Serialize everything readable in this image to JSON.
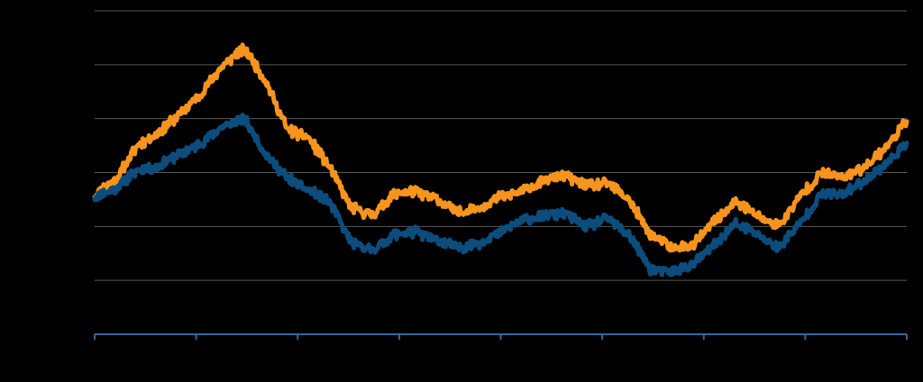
{
  "chart_data": {
    "type": "line",
    "title": "",
    "xlabel": "",
    "ylabel": "",
    "ylim": [
      0,
      6
    ],
    "grid": true,
    "x_ticks": 9,
    "series": [
      {
        "color": "#f7941d",
        "values": [
          2.6,
          2.88,
          3.5,
          3.75,
          4.08,
          4.47,
          4.99,
          5.3,
          4.7,
          3.8,
          3.64,
          3.1,
          2.35,
          2.2,
          2.6,
          2.65,
          2.5,
          2.25,
          2.35,
          2.55,
          2.65,
          2.85,
          2.95,
          2.75,
          2.8,
          2.5,
          1.85,
          1.6,
          1.65,
          2.1,
          2.45,
          2.2,
          2.0,
          2.55,
          3.0,
          2.9,
          3.1,
          3.45,
          3.95
        ]
      },
      {
        "color": "#0c4d7d",
        "values": [
          2.55,
          2.7,
          3.05,
          3.12,
          3.35,
          3.55,
          3.85,
          4.0,
          3.35,
          2.9,
          2.68,
          2.45,
          1.7,
          1.55,
          1.85,
          1.9,
          1.75,
          1.6,
          1.7,
          1.9,
          2.1,
          2.2,
          2.25,
          2.0,
          2.15,
          1.85,
          1.2,
          1.15,
          1.3,
          1.65,
          2.05,
          1.85,
          1.6,
          2.05,
          2.6,
          2.6,
          2.85,
          3.15,
          3.55
        ]
      }
    ]
  },
  "colors": {
    "background": "#000000",
    "gridline": "#595959",
    "axis": "#2f6a9c"
  }
}
